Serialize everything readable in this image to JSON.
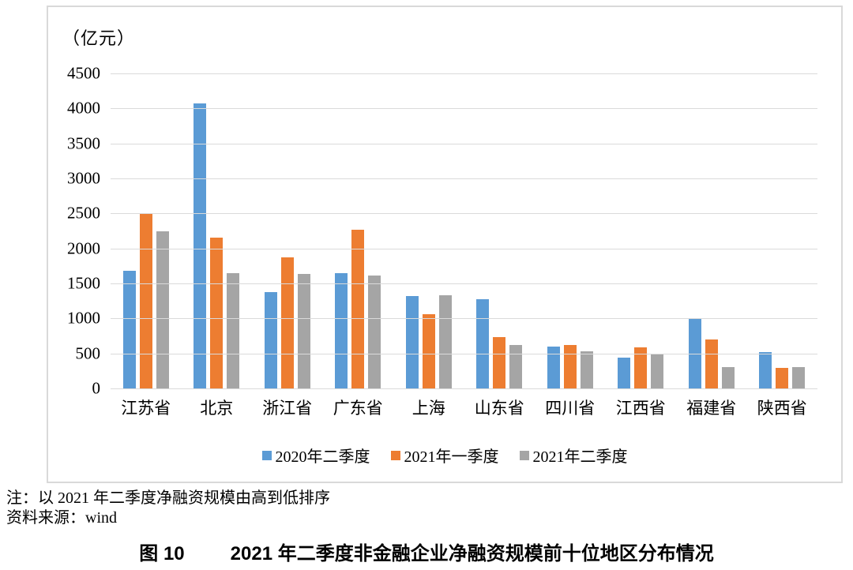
{
  "figure": {
    "unit_label": "（亿元）",
    "note_line1": "注：以 2021 年二季度净融资规模由高到低排序",
    "note_line2": "资料来源：wind",
    "caption_prefix": "图 10",
    "caption_text": "2021 年二季度非金融企业净融资规模前十位地区分布情况"
  },
  "colors": {
    "series_blue": "#5B9BD5",
    "series_orange": "#ED7D31",
    "series_gray": "#A5A5A5",
    "gridline": "#DADADA",
    "frame_border": "#D9D9D9",
    "text": "#000000"
  },
  "chart_data": {
    "type": "bar",
    "title": "图 10 2021 年二季度非金融企业净融资规模前十位地区分布情况",
    "ylabel": "（亿元）",
    "xlabel": "",
    "ylim": [
      0,
      4500
    ],
    "y_ticks": [
      4500,
      4000,
      3500,
      3000,
      2500,
      2000,
      1500,
      1000,
      500,
      0
    ],
    "grid": true,
    "legend_position": "bottom",
    "categories": [
      "江苏省",
      "北京",
      "浙江省",
      "广东省",
      "上海",
      "山东省",
      "四川省",
      "江西省",
      "福建省",
      "陕西省"
    ],
    "series": [
      {
        "name": "2020年二季度",
        "color": "#5B9BD5",
        "values": [
          1680,
          4070,
          1380,
          1650,
          1320,
          1270,
          600,
          440,
          1000,
          520
        ]
      },
      {
        "name": "2021年一季度",
        "color": "#ED7D31",
        "values": [
          2490,
          2150,
          1870,
          2270,
          1060,
          730,
          620,
          590,
          700,
          290
        ]
      },
      {
        "name": "2021年二季度",
        "color": "#A5A5A5",
        "values": [
          2250,
          1650,
          1640,
          1610,
          1330,
          620,
          530,
          480,
          310,
          300
        ]
      }
    ]
  }
}
